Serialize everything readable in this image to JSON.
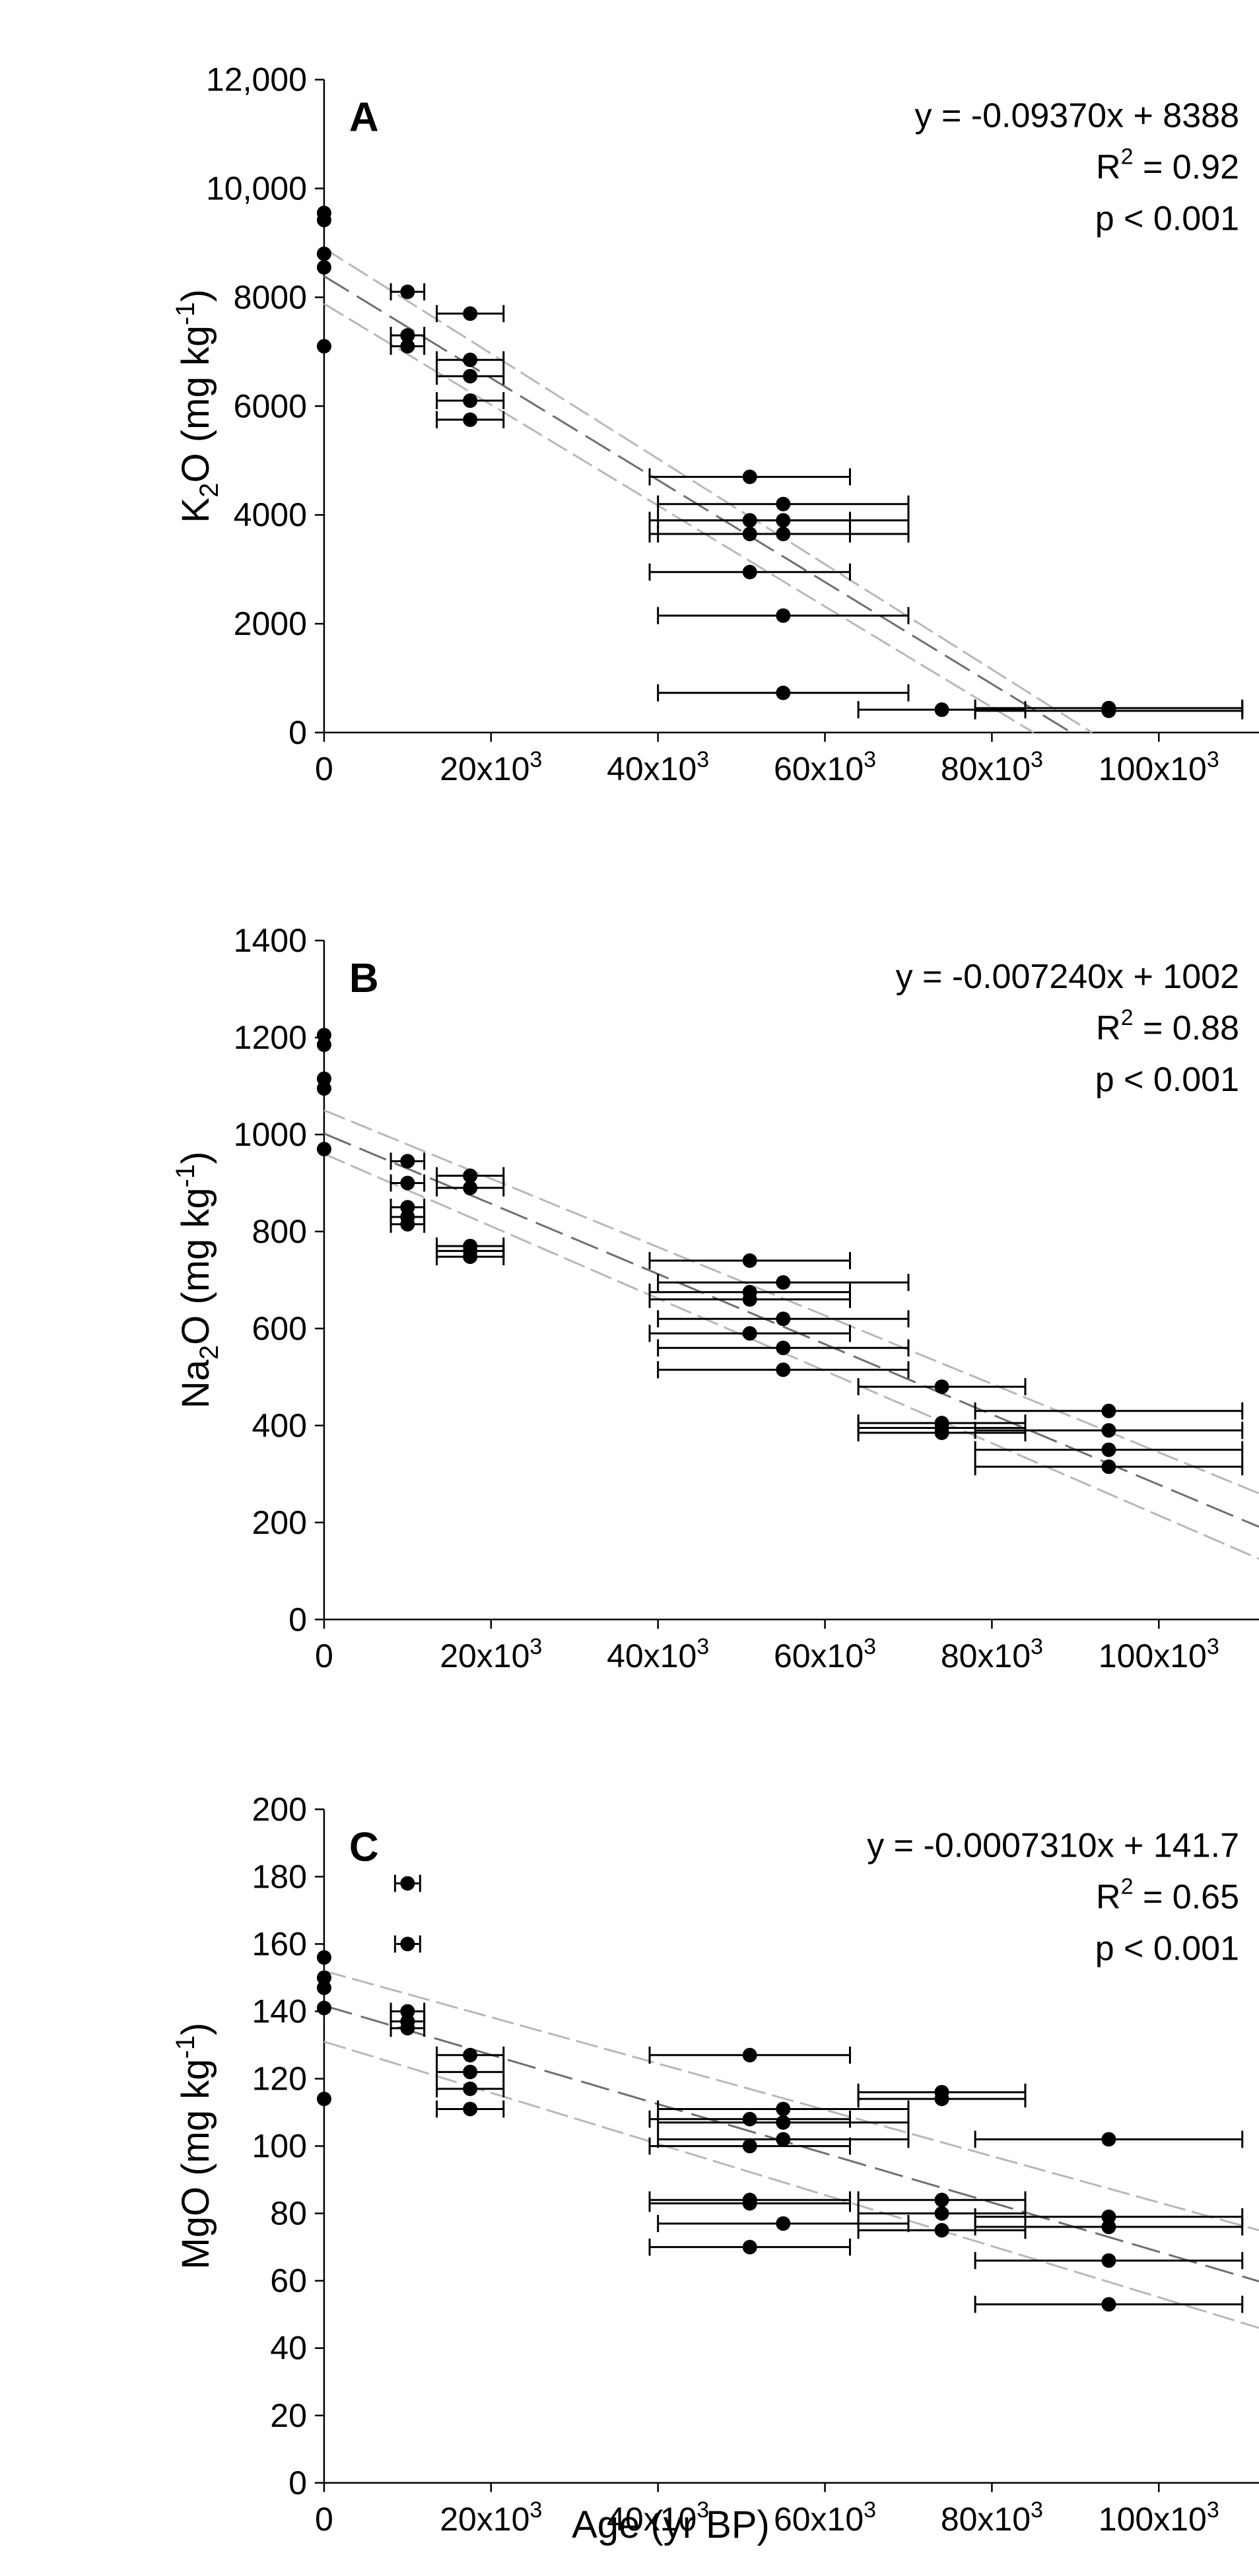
{
  "figure": {
    "xlabel": "Age (yr BP)",
    "x_tick_labels": [
      "0",
      "20x10",
      "40x10",
      "60x10",
      "80x10",
      "100x10"
    ],
    "x_tick_exponent": "3"
  },
  "chart_data": [
    {
      "type": "scatter",
      "panel": "A",
      "ylabel_base": "K",
      "ylabel_sub": "2",
      "ylabel_mid": "O (mg kg",
      "ylabel_sup": "-1",
      "ylabel_end": ")",
      "xlim": [
        0,
        112000
      ],
      "ylim": [
        0,
        12000
      ],
      "y_ticks": [
        0,
        2000,
        4000,
        6000,
        8000,
        10000,
        12000
      ],
      "y_tick_labels": [
        "0",
        "2000",
        "4000",
        "6000",
        "8000",
        "10,000",
        "12,000"
      ],
      "x_ticks": [
        0,
        20000,
        40000,
        60000,
        80000,
        100000
      ],
      "equation": "y = -0.09370x + 8388",
      "r2_prefix": "R",
      "r2_sup": "2",
      "r2_value": " = 0.92",
      "p_value": "p < 0.001",
      "fit": {
        "slope": -0.0937,
        "intercept": 8388
      },
      "ci_lines": [
        {
          "x": [
            0,
            92000
          ],
          "y": [
            8900,
            0
          ]
        },
        {
          "x": [
            0,
            85000
          ],
          "y": [
            7880,
            0
          ]
        }
      ],
      "points": [
        {
          "x": 0,
          "y": 9550
        },
        {
          "x": 0,
          "y": 9420
        },
        {
          "x": 0,
          "y": 8800
        },
        {
          "x": 0,
          "y": 8550
        },
        {
          "x": 0,
          "y": 7100
        },
        {
          "x": 10000,
          "y": 8100,
          "xerr": 2000
        },
        {
          "x": 10000,
          "y": 7300,
          "xerr": 2000
        },
        {
          "x": 10000,
          "y": 7100,
          "xerr": 2000
        },
        {
          "x": 17500,
          "y": 7700,
          "xerr": 4000
        },
        {
          "x": 17500,
          "y": 6850,
          "xerr": 4000
        },
        {
          "x": 17500,
          "y": 6550,
          "xerr": 4000
        },
        {
          "x": 17500,
          "y": 6100,
          "xerr": 4000
        },
        {
          "x": 17500,
          "y": 5750,
          "xerr": 4000
        },
        {
          "x": 51000,
          "y": 4700,
          "xerr": 12000
        },
        {
          "x": 51000,
          "y": 3900,
          "xerr": 12000
        },
        {
          "x": 51000,
          "y": 3650,
          "xerr": 12000
        },
        {
          "x": 51000,
          "y": 2950,
          "xerr": 12000
        },
        {
          "x": 55000,
          "y": 4200,
          "xerr": 15000
        },
        {
          "x": 55000,
          "y": 3900,
          "xerr": 15000
        },
        {
          "x": 55000,
          "y": 3650,
          "xerr": 15000
        },
        {
          "x": 55000,
          "y": 2150,
          "xerr": 15000
        },
        {
          "x": 55000,
          "y": 730,
          "xerr": 15000
        },
        {
          "x": 74000,
          "y": 420,
          "xerr": 10000
        },
        {
          "x": 94000,
          "y": 450,
          "xerr": 16000
        },
        {
          "x": 94000,
          "y": 400,
          "xerr": 16000
        }
      ]
    },
    {
      "type": "scatter",
      "panel": "B",
      "ylabel_base": "Na",
      "ylabel_sub": "2",
      "ylabel_mid": "O (mg kg",
      "ylabel_sup": "-1",
      "ylabel_end": ")",
      "xlim": [
        0,
        112000
      ],
      "ylim": [
        0,
        1400
      ],
      "y_ticks": [
        0,
        200,
        400,
        600,
        800,
        1000,
        1200,
        1400
      ],
      "y_tick_labels": [
        "0",
        "200",
        "400",
        "600",
        "800",
        "1000",
        "1200",
        "1400"
      ],
      "x_ticks": [
        0,
        20000,
        40000,
        60000,
        80000,
        100000
      ],
      "equation": "y = -0.007240x + 1002",
      "r2_prefix": "R",
      "r2_sup": "2",
      "r2_value": " = 0.88",
      "p_value": "p < 0.001",
      "fit": {
        "slope": -0.00724,
        "intercept": 1002
      },
      "ci_lines": [
        {
          "x": [
            0,
            112000
          ],
          "y": [
            1050,
            260
          ]
        },
        {
          "x": [
            0,
            112000
          ],
          "y": [
            960,
            125
          ]
        }
      ],
      "points": [
        {
          "x": 0,
          "y": 1205
        },
        {
          "x": 0,
          "y": 1185
        },
        {
          "x": 0,
          "y": 1115
        },
        {
          "x": 0,
          "y": 1095
        },
        {
          "x": 0,
          "y": 970
        },
        {
          "x": 10000,
          "y": 945,
          "xerr": 2000
        },
        {
          "x": 10000,
          "y": 900,
          "xerr": 2000
        },
        {
          "x": 10000,
          "y": 850,
          "xerr": 2000
        },
        {
          "x": 10000,
          "y": 830,
          "xerr": 2000
        },
        {
          "x": 10000,
          "y": 815,
          "xerr": 2000
        },
        {
          "x": 17500,
          "y": 915,
          "xerr": 4000
        },
        {
          "x": 17500,
          "y": 890,
          "xerr": 4000
        },
        {
          "x": 17500,
          "y": 770,
          "xerr": 4000
        },
        {
          "x": 17500,
          "y": 760,
          "xerr": 4000
        },
        {
          "x": 17500,
          "y": 748,
          "xerr": 4000
        },
        {
          "x": 51000,
          "y": 740,
          "xerr": 12000
        },
        {
          "x": 51000,
          "y": 675,
          "xerr": 12000
        },
        {
          "x": 51000,
          "y": 660,
          "xerr": 12000
        },
        {
          "x": 51000,
          "y": 590,
          "xerr": 12000
        },
        {
          "x": 55000,
          "y": 695,
          "xerr": 15000
        },
        {
          "x": 55000,
          "y": 620,
          "xerr": 15000
        },
        {
          "x": 55000,
          "y": 560,
          "xerr": 15000
        },
        {
          "x": 55000,
          "y": 515,
          "xerr": 15000
        },
        {
          "x": 74000,
          "y": 480,
          "xerr": 10000
        },
        {
          "x": 74000,
          "y": 405,
          "xerr": 10000
        },
        {
          "x": 74000,
          "y": 395,
          "xerr": 10000
        },
        {
          "x": 74000,
          "y": 385,
          "xerr": 10000
        },
        {
          "x": 94000,
          "y": 430,
          "xerr": 16000
        },
        {
          "x": 94000,
          "y": 390,
          "xerr": 16000
        },
        {
          "x": 94000,
          "y": 350,
          "xerr": 16000
        },
        {
          "x": 94000,
          "y": 315,
          "xerr": 16000
        }
      ]
    },
    {
      "type": "scatter",
      "panel": "C",
      "ylabel_base": "MgO (mg kg",
      "ylabel_sub": "",
      "ylabel_mid": "",
      "ylabel_sup": "-1",
      "ylabel_end": ")",
      "xlim": [
        0,
        112000
      ],
      "ylim": [
        0,
        200
      ],
      "y_ticks": [
        0,
        20,
        40,
        60,
        80,
        100,
        120,
        140,
        160,
        180,
        200
      ],
      "y_tick_labels": [
        "0",
        "20",
        "40",
        "60",
        "80",
        "100",
        "120",
        "140",
        "160",
        "180",
        "200"
      ],
      "x_ticks": [
        0,
        20000,
        40000,
        60000,
        80000,
        100000
      ],
      "equation": "y = -0.0007310x + 141.7",
      "r2_prefix": "R",
      "r2_sup": "2",
      "r2_value": " = 0.65",
      "p_value": "p < 0.001",
      "fit": {
        "slope": -0.000731,
        "intercept": 141.7
      },
      "ci_lines": [
        {
          "x": [
            0,
            112000
          ],
          "y": [
            152,
            75
          ]
        },
        {
          "x": [
            0,
            112000
          ],
          "y": [
            131,
            46
          ]
        }
      ],
      "points": [
        {
          "x": 0,
          "y": 156
        },
        {
          "x": 0,
          "y": 150
        },
        {
          "x": 0,
          "y": 147
        },
        {
          "x": 0,
          "y": 141
        },
        {
          "x": 0,
          "y": 114
        },
        {
          "x": 10000,
          "y": 178,
          "xerr": 1500
        },
        {
          "x": 10000,
          "y": 160,
          "xerr": 1500
        },
        {
          "x": 10000,
          "y": 140,
          "xerr": 2000
        },
        {
          "x": 10000,
          "y": 137,
          "xerr": 2000
        },
        {
          "x": 10000,
          "y": 135,
          "xerr": 2000
        },
        {
          "x": 17500,
          "y": 127,
          "xerr": 4000
        },
        {
          "x": 17500,
          "y": 122,
          "xerr": 4000
        },
        {
          "x": 17500,
          "y": 117,
          "xerr": 4000
        },
        {
          "x": 17500,
          "y": 111,
          "xerr": 4000
        },
        {
          "x": 51000,
          "y": 127,
          "xerr": 12000
        },
        {
          "x": 51000,
          "y": 108,
          "xerr": 12000
        },
        {
          "x": 51000,
          "y": 100,
          "xerr": 12000
        },
        {
          "x": 51000,
          "y": 84,
          "xerr": 12000
        },
        {
          "x": 51000,
          "y": 83,
          "xerr": 12000
        },
        {
          "x": 51000,
          "y": 70,
          "xerr": 12000
        },
        {
          "x": 55000,
          "y": 111,
          "xerr": 15000
        },
        {
          "x": 55000,
          "y": 107,
          "xerr": 15000
        },
        {
          "x": 55000,
          "y": 102,
          "xerr": 15000
        },
        {
          "x": 55000,
          "y": 77,
          "xerr": 15000
        },
        {
          "x": 74000,
          "y": 116,
          "xerr": 10000
        },
        {
          "x": 74000,
          "y": 114,
          "xerr": 10000
        },
        {
          "x": 74000,
          "y": 84,
          "xerr": 10000
        },
        {
          "x": 74000,
          "y": 80,
          "xerr": 10000
        },
        {
          "x": 74000,
          "y": 75,
          "xerr": 10000
        },
        {
          "x": 94000,
          "y": 102,
          "xerr": 16000
        },
        {
          "x": 94000,
          "y": 79,
          "xerr": 16000
        },
        {
          "x": 94000,
          "y": 76,
          "xerr": 16000
        },
        {
          "x": 94000,
          "y": 66,
          "xerr": 16000
        },
        {
          "x": 94000,
          "y": 53,
          "xerr": 16000
        }
      ]
    }
  ]
}
